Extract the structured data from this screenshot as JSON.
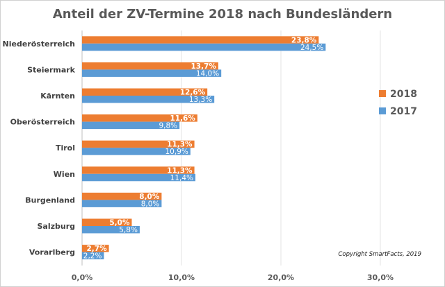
{
  "chart_data": {
    "type": "bar",
    "orientation": "horizontal",
    "title": "Anteil der ZV-Termine 2018 nach Bundesländern",
    "categories": [
      "Niederösterreich",
      "Steiermark",
      "Kärnten",
      "Oberösterreich",
      "Tirol",
      "Wien",
      "Burgenland",
      "Salzburg",
      "Vorarlberg"
    ],
    "series": [
      {
        "name": "2018",
        "color": "#ED7D31",
        "values": [
          23.8,
          13.7,
          12.6,
          11.6,
          11.3,
          11.3,
          8.0,
          5.0,
          2.7
        ],
        "labels": [
          "23,8%",
          "13,7%",
          "12,6%",
          "11,6%",
          "11,3%",
          "11,3%",
          "8,0%",
          "5,0%",
          "2,7%"
        ]
      },
      {
        "name": "2017",
        "color": "#5B9BD5",
        "values": [
          24.5,
          14.0,
          13.3,
          9.8,
          10.9,
          11.4,
          8.0,
          5.8,
          2.2
        ],
        "labels": [
          "24,5%",
          "14,0%",
          "13,3%",
          "9,8%",
          "10,9%",
          "11,4%",
          "8,0%",
          "5,8%",
          "2,2%"
        ]
      }
    ],
    "xlim": [
      0,
      35
    ],
    "xticks": [
      0,
      10,
      20,
      30
    ],
    "xtick_labels": [
      "0,0%",
      "10,0%",
      "20,0%",
      "30,0%"
    ],
    "grid": "vertical",
    "legend_position": "right",
    "annotation": "Copyright SmartFacts, 2019"
  }
}
